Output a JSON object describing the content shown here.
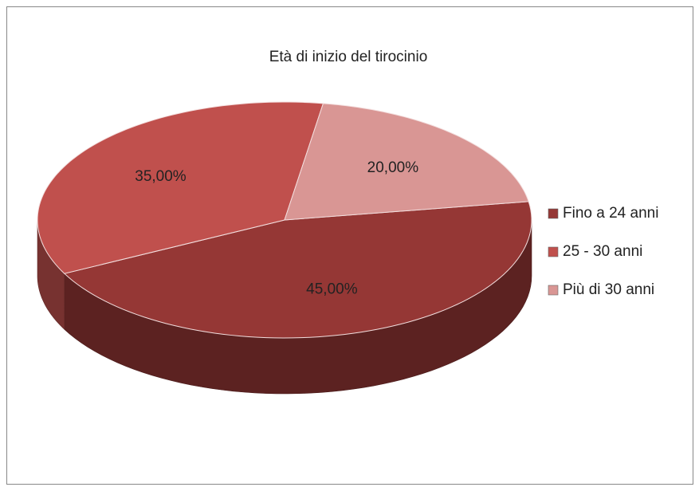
{
  "chart_data": {
    "type": "pie",
    "title": "Età di inizio del tirocinio",
    "categories": [
      "Fino a 24 anni",
      "25 - 30 anni",
      "Più di 30 anni"
    ],
    "values": [
      45,
      35,
      20
    ],
    "value_labels": [
      "45,00%",
      "35,00%",
      "20,00%"
    ],
    "colors": [
      "#953735",
      "#c0504d",
      "#d99694"
    ],
    "legend": "right"
  }
}
